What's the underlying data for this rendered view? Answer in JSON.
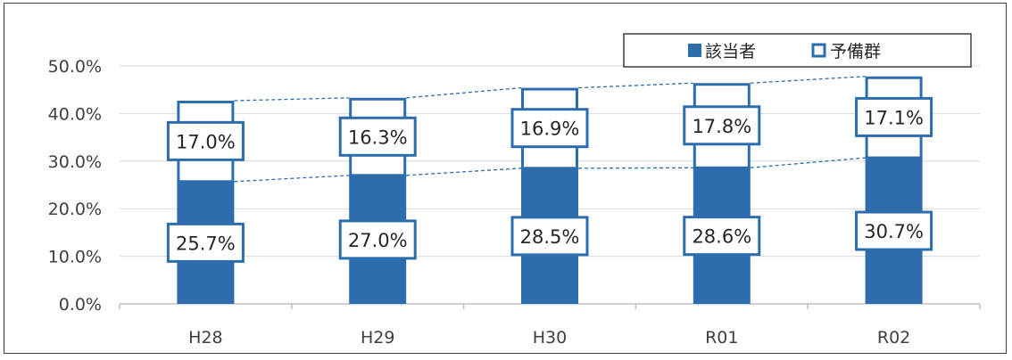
{
  "chart_data": {
    "type": "bar",
    "stacked": true,
    "categories": [
      "H28",
      "H29",
      "H30",
      "R01",
      "R02"
    ],
    "series": [
      {
        "name": "該当者",
        "values": [
          25.7,
          27.0,
          28.5,
          28.6,
          30.7
        ],
        "labels": [
          "25.7%",
          "27.0%",
          "28.5%",
          "28.6%",
          "30.7%"
        ],
        "style": "filled",
        "color": "#2E6DAD"
      },
      {
        "name": "予備群",
        "values": [
          17.0,
          16.3,
          16.9,
          17.8,
          17.1
        ],
        "labels": [
          "17.0%",
          "16.3%",
          "16.9%",
          "17.8%",
          "17.1%"
        ],
        "style": "outline",
        "color": "#2E6DAD"
      }
    ],
    "y_ticks": [
      "0.0%",
      "10.0%",
      "20.0%",
      "30.0%",
      "40.0%",
      "50.0%"
    ],
    "ylim": [
      0,
      50
    ],
    "grid": true,
    "series_lines": "dashed",
    "legend_position": "top-right",
    "title": "",
    "xlabel": "",
    "ylabel": ""
  }
}
